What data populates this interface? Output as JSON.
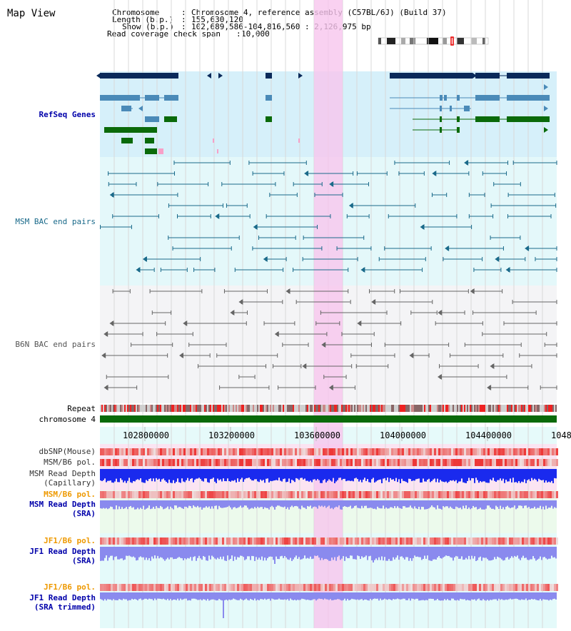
{
  "title": "Map View",
  "info": {
    "chromosome_label": "Chromosome",
    "chromosome_value": "Chromosome 4, reference assembly (C57BL/6J) (Build 37)",
    "length_label": "Length (b.p.)",
    "length_value": "155,630,120",
    "show_label": "Show (b.p.)",
    "show_value": "102,689,586-104,816,560 : 2,126,975 bp",
    "coverage_label": "Read coverage check span",
    "coverage_value": "10,000"
  },
  "tracks": {
    "refseq": "RefSeq Genes",
    "msm_bac": "MSM BAC end pairs",
    "b6n_bac": "B6N BAC end pairs",
    "repeat": "Repeat",
    "chromosome": "chromosome 4",
    "dbsnp": "dbSNP(Mouse)",
    "msm_b6_pol_1": "MSM/B6 pol.",
    "msm_depth_cap_1": "MSM Read Depth",
    "msm_depth_cap_2": "(Capillary)",
    "msm_b6_pol_2": "MSM/B6 pol.",
    "msm_depth_sra_1": "MSM Read Depth",
    "msm_depth_sra_2": "(SRA)",
    "jf1_b6_pol_1": "JF1/B6 pol.",
    "jf1_depth_sra_1": "JF1 Read Depth",
    "jf1_depth_sra_2": "(SRA)",
    "jf1_b6_pol_2": "JF1/B6 pol.",
    "jf1_depth_trim_1": "JF1 Read Depth",
    "jf1_depth_trim_2": "(SRA trimmed)"
  },
  "ruler_ticks": [
    "102800000",
    "103200000",
    "103600000",
    "104000000",
    "104400000",
    "1048"
  ],
  "colors": {
    "refseq_dark": "#0a2a5a",
    "refseq_mid": "#4a8ab8",
    "refseq_green": "#0a6a0a",
    "msm_line": "#1a6a8a",
    "b6n_line": "#666666",
    "highlight": "#f7c6ee",
    "track_bg_refseq": "#d6f0fa",
    "track_bg_msm": "#e4f8fa",
    "track_bg_b6n": "#f4f4f6",
    "depth_blue": "#1a2aee",
    "depth_light": "#8a8aee",
    "pol_red": "#ee4444",
    "label_orange": "#ee9900",
    "label_blue": "#0000aa",
    "label_teal": "#1a5a8a"
  }
}
